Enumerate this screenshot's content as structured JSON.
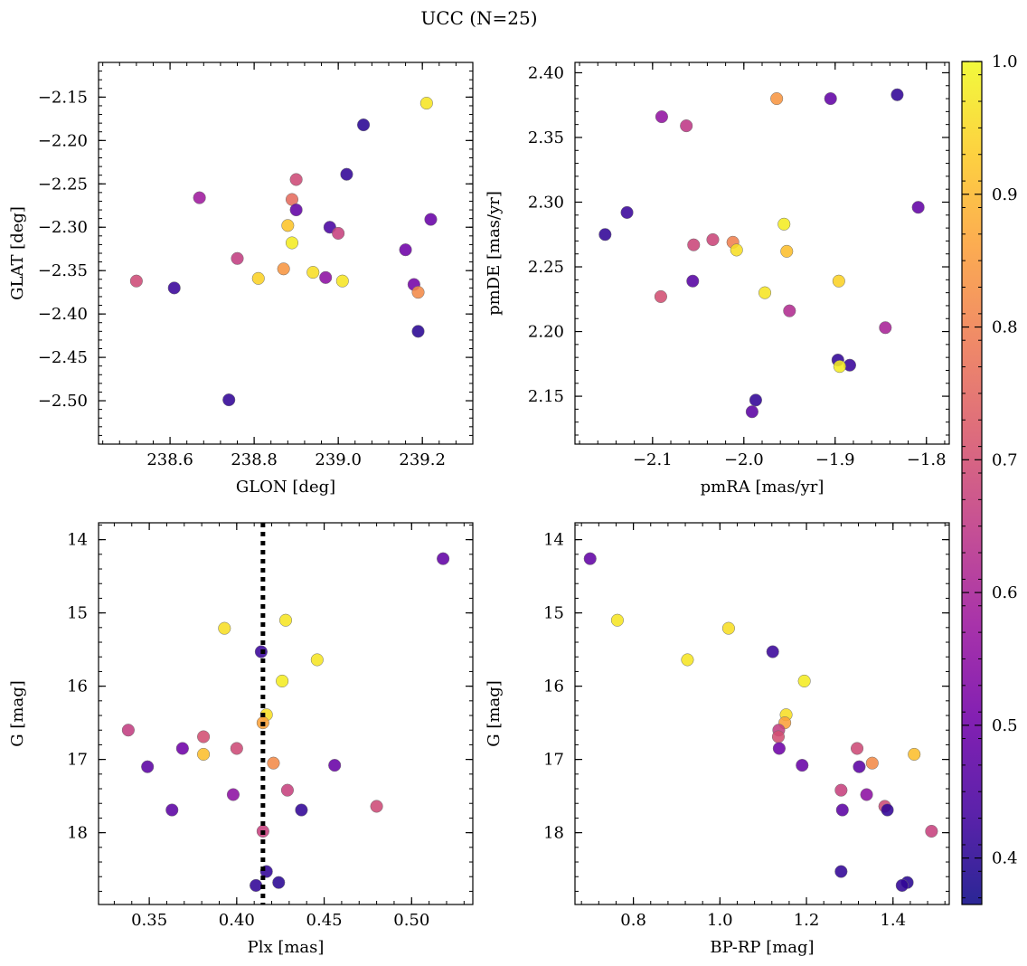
{
  "figure": {
    "title": "UCC (N=25)",
    "colorbar": {
      "min": 0.365,
      "max": 1.0,
      "ticks": [
        0.4,
        0.5,
        0.6,
        0.7,
        0.8,
        0.9,
        1.0
      ],
      "tick_labels": [
        "0.4",
        "0.5",
        "0.6",
        "0.7",
        "0.8",
        "0.9",
        "1.0"
      ],
      "colormap": "plasma",
      "stops": [
        "#0d0887",
        "#46039f",
        "#7201a8",
        "#9c179e",
        "#bd3786",
        "#d8576b",
        "#ed7953",
        "#fb9f3a",
        "#fdca26",
        "#f0f921"
      ]
    },
    "reference_line": {
      "panel": 2,
      "axis": "x",
      "value": 0.415,
      "style": "dotted"
    }
  },
  "chart_data": [
    {
      "type": "scatter",
      "title": "",
      "xlabel": "GLON [deg]",
      "ylabel": "GLAT [deg]",
      "xlim": [
        238.43,
        239.32
      ],
      "ylim": [
        -2.55,
        -2.11
      ],
      "y_inverted": false,
      "xticks": [
        238.6,
        238.8,
        239.0,
        239.2
      ],
      "xtick_labels": [
        "238.6",
        "238.8",
        "239.0",
        "239.2"
      ],
      "yticks": [
        -2.5,
        -2.45,
        -2.4,
        -2.35,
        -2.3,
        -2.25,
        -2.2,
        -2.15
      ],
      "ytick_labels": [
        "−2.50",
        "−2.45",
        "−2.40",
        "−2.35",
        "−2.30",
        "−2.25",
        "−2.20",
        "−2.15"
      ],
      "points": [
        {
          "x": 239.21,
          "y": -2.157,
          "c": 0.97
        },
        {
          "x": 239.06,
          "y": -2.182,
          "c": 0.4
        },
        {
          "x": 239.02,
          "y": -2.239,
          "c": 0.41
        },
        {
          "x": 238.9,
          "y": -2.245,
          "c": 0.69
        },
        {
          "x": 238.67,
          "y": -2.266,
          "c": 0.58
        },
        {
          "x": 238.89,
          "y": -2.268,
          "c": 0.76
        },
        {
          "x": 238.9,
          "y": -2.28,
          "c": 0.48
        },
        {
          "x": 239.22,
          "y": -2.291,
          "c": 0.49
        },
        {
          "x": 238.88,
          "y": -2.298,
          "c": 0.92
        },
        {
          "x": 238.98,
          "y": -2.3,
          "c": 0.44
        },
        {
          "x": 239.0,
          "y": -2.307,
          "c": 0.67
        },
        {
          "x": 238.89,
          "y": -2.318,
          "c": 0.98
        },
        {
          "x": 239.16,
          "y": -2.326,
          "c": 0.5
        },
        {
          "x": 238.76,
          "y": -2.336,
          "c": 0.66
        },
        {
          "x": 238.87,
          "y": -2.348,
          "c": 0.84
        },
        {
          "x": 238.94,
          "y": -2.352,
          "c": 0.96
        },
        {
          "x": 238.81,
          "y": -2.359,
          "c": 0.94
        },
        {
          "x": 238.97,
          "y": -2.358,
          "c": 0.55
        },
        {
          "x": 238.52,
          "y": -2.362,
          "c": 0.69
        },
        {
          "x": 239.01,
          "y": -2.362,
          "c": 0.97
        },
        {
          "x": 239.18,
          "y": -2.366,
          "c": 0.51
        },
        {
          "x": 238.61,
          "y": -2.37,
          "c": 0.42
        },
        {
          "x": 239.19,
          "y": -2.375,
          "c": 0.82
        },
        {
          "x": 239.19,
          "y": -2.42,
          "c": 0.4
        },
        {
          "x": 238.74,
          "y": -2.499,
          "c": 0.41
        }
      ]
    },
    {
      "type": "scatter",
      "title": "",
      "xlabel": "pmRA [mas/yr]",
      "ylabel": "pmDE [mas/yr]",
      "xlim": [
        -2.185,
        -1.775
      ],
      "ylim": [
        2.113,
        2.408
      ],
      "y_inverted": false,
      "xticks": [
        -2.1,
        -2.0,
        -1.9,
        -1.8
      ],
      "xtick_labels": [
        "−2.1",
        "−2.0",
        "−1.9",
        "−1.8"
      ],
      "yticks": [
        2.15,
        2.2,
        2.25,
        2.3,
        2.35,
        2.4
      ],
      "ytick_labels": [
        "2.15",
        "2.20",
        "2.25",
        "2.30",
        "2.35",
        "2.40"
      ],
      "points": [
        {
          "x": -1.832,
          "y": 2.383,
          "c": 0.41
        },
        {
          "x": -1.905,
          "y": 2.38,
          "c": 0.48
        },
        {
          "x": -1.964,
          "y": 2.38,
          "c": 0.84
        },
        {
          "x": -2.09,
          "y": 2.366,
          "c": 0.56
        },
        {
          "x": -2.063,
          "y": 2.359,
          "c": 0.65
        },
        {
          "x": -1.809,
          "y": 2.296,
          "c": 0.48
        },
        {
          "x": -2.128,
          "y": 2.292,
          "c": 0.42
        },
        {
          "x": -1.956,
          "y": 2.283,
          "c": 0.98
        },
        {
          "x": -2.152,
          "y": 2.275,
          "c": 0.41
        },
        {
          "x": -2.034,
          "y": 2.271,
          "c": 0.68
        },
        {
          "x": -2.012,
          "y": 2.269,
          "c": 0.8
        },
        {
          "x": -2.055,
          "y": 2.267,
          "c": 0.68
        },
        {
          "x": -2.008,
          "y": 2.263,
          "c": 0.96
        },
        {
          "x": -1.953,
          "y": 2.262,
          "c": 0.91
        },
        {
          "x": -2.056,
          "y": 2.239,
          "c": 0.46
        },
        {
          "x": -1.896,
          "y": 2.239,
          "c": 0.94
        },
        {
          "x": -1.977,
          "y": 2.23,
          "c": 0.97
        },
        {
          "x": -2.091,
          "y": 2.227,
          "c": 0.7
        },
        {
          "x": -1.95,
          "y": 2.216,
          "c": 0.62
        },
        {
          "x": -1.845,
          "y": 2.203,
          "c": 0.6
        },
        {
          "x": -1.897,
          "y": 2.178,
          "c": 0.41
        },
        {
          "x": -1.884,
          "y": 2.174,
          "c": 0.42
        },
        {
          "x": -1.895,
          "y": 2.173,
          "c": 0.98
        },
        {
          "x": -1.987,
          "y": 2.147,
          "c": 0.41
        },
        {
          "x": -1.991,
          "y": 2.138,
          "c": 0.47
        }
      ]
    },
    {
      "type": "scatter",
      "title": "",
      "xlabel": "Plx [mas]",
      "ylabel": "G [mag]",
      "xlim": [
        0.321,
        0.535
      ],
      "ylim": [
        13.77,
        18.98
      ],
      "y_inverted": true,
      "xticks": [
        0.35,
        0.4,
        0.45,
        0.5
      ],
      "xtick_labels": [
        "0.35",
        "0.40",
        "0.45",
        "0.50"
      ],
      "yticks": [
        14,
        15,
        16,
        17,
        18
      ],
      "ytick_labels": [
        "14",
        "15",
        "16",
        "17",
        "18"
      ],
      "points": [
        {
          "x": 0.518,
          "y": 14.26,
          "c": 0.48
        },
        {
          "x": 0.428,
          "y": 15.1,
          "c": 0.97
        },
        {
          "x": 0.393,
          "y": 15.21,
          "c": 0.96
        },
        {
          "x": 0.414,
          "y": 15.53,
          "c": 0.42
        },
        {
          "x": 0.446,
          "y": 15.64,
          "c": 0.97
        },
        {
          "x": 0.426,
          "y": 15.93,
          "c": 0.98
        },
        {
          "x": 0.417,
          "y": 16.39,
          "c": 0.96
        },
        {
          "x": 0.415,
          "y": 16.5,
          "c": 0.86
        },
        {
          "x": 0.338,
          "y": 16.6,
          "c": 0.66
        },
        {
          "x": 0.381,
          "y": 16.69,
          "c": 0.7
        },
        {
          "x": 0.369,
          "y": 16.85,
          "c": 0.5
        },
        {
          "x": 0.4,
          "y": 16.85,
          "c": 0.69
        },
        {
          "x": 0.381,
          "y": 16.93,
          "c": 0.91
        },
        {
          "x": 0.421,
          "y": 17.05,
          "c": 0.82
        },
        {
          "x": 0.456,
          "y": 17.08,
          "c": 0.49
        },
        {
          "x": 0.349,
          "y": 17.1,
          "c": 0.47
        },
        {
          "x": 0.429,
          "y": 17.42,
          "c": 0.67
        },
        {
          "x": 0.398,
          "y": 17.48,
          "c": 0.55
        },
        {
          "x": 0.48,
          "y": 17.64,
          "c": 0.69
        },
        {
          "x": 0.363,
          "y": 17.69,
          "c": 0.47
        },
        {
          "x": 0.437,
          "y": 17.69,
          "c": 0.41
        },
        {
          "x": 0.415,
          "y": 17.98,
          "c": 0.67
        },
        {
          "x": 0.417,
          "y": 18.53,
          "c": 0.41
        },
        {
          "x": 0.424,
          "y": 18.68,
          "c": 0.4
        },
        {
          "x": 0.411,
          "y": 18.72,
          "c": 0.41
        }
      ]
    },
    {
      "type": "scatter",
      "title": "",
      "xlabel": "BP-RP [mag]",
      "ylabel": "G [mag]",
      "xlim": [
        0.665,
        1.53
      ],
      "ylim": [
        13.77,
        18.98
      ],
      "y_inverted": true,
      "xticks": [
        0.8,
        1.0,
        1.2,
        1.4
      ],
      "xtick_labels": [
        "0.8",
        "1.0",
        "1.2",
        "1.4"
      ],
      "yticks": [
        14,
        15,
        16,
        17,
        18
      ],
      "ytick_labels": [
        "14",
        "15",
        "16",
        "17",
        "18"
      ],
      "points": [
        {
          "x": 0.7,
          "y": 14.26,
          "c": 0.48
        },
        {
          "x": 0.763,
          "y": 15.1,
          "c": 0.97
        },
        {
          "x": 1.02,
          "y": 15.21,
          "c": 0.96
        },
        {
          "x": 1.122,
          "y": 15.53,
          "c": 0.42
        },
        {
          "x": 0.925,
          "y": 15.64,
          "c": 0.97
        },
        {
          "x": 1.195,
          "y": 15.93,
          "c": 0.98
        },
        {
          "x": 1.153,
          "y": 16.39,
          "c": 0.96
        },
        {
          "x": 1.15,
          "y": 16.5,
          "c": 0.86
        },
        {
          "x": 1.136,
          "y": 16.6,
          "c": 0.66
        },
        {
          "x": 1.135,
          "y": 16.69,
          "c": 0.7
        },
        {
          "x": 1.137,
          "y": 16.85,
          "c": 0.5
        },
        {
          "x": 1.317,
          "y": 16.85,
          "c": 0.69
        },
        {
          "x": 1.449,
          "y": 16.93,
          "c": 0.91
        },
        {
          "x": 1.352,
          "y": 17.05,
          "c": 0.82
        },
        {
          "x": 1.19,
          "y": 17.08,
          "c": 0.49
        },
        {
          "x": 1.322,
          "y": 17.1,
          "c": 0.47
        },
        {
          "x": 1.28,
          "y": 17.42,
          "c": 0.67
        },
        {
          "x": 1.339,
          "y": 17.48,
          "c": 0.55
        },
        {
          "x": 1.381,
          "y": 17.64,
          "c": 0.69
        },
        {
          "x": 1.283,
          "y": 17.69,
          "c": 0.47
        },
        {
          "x": 1.387,
          "y": 17.69,
          "c": 0.41
        },
        {
          "x": 1.489,
          "y": 17.98,
          "c": 0.67
        },
        {
          "x": 1.28,
          "y": 18.53,
          "c": 0.41
        },
        {
          "x": 1.433,
          "y": 18.68,
          "c": 0.4
        },
        {
          "x": 1.421,
          "y": 18.72,
          "c": 0.41
        }
      ]
    }
  ]
}
